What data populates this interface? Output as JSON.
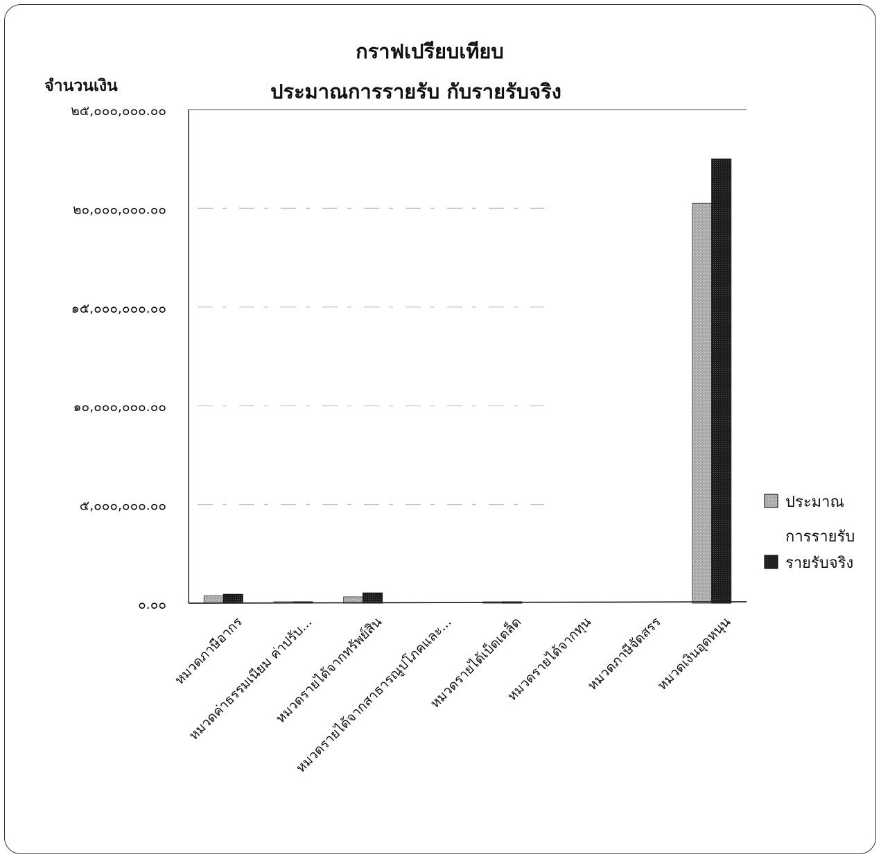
{
  "chart_data": {
    "type": "bar",
    "title": [
      "กราฟเปรียบเทียบ",
      "ประมาณการรายรับ กับรายรับจริง"
    ],
    "ylabel": "จำนวนเงิน",
    "xlabel": "",
    "ylim": [
      0,
      25000000
    ],
    "yticks": [
      0,
      5000000,
      10000000,
      15000000,
      20000000,
      25000000
    ],
    "ytick_labels": [
      "๐.๐๐",
      "๕,๐๐๐,๐๐๐.๐๐",
      "๑๐,๐๐๐,๐๐๐.๐๐",
      "๑๕,๐๐๐,๐๐๐.๐๐",
      "๒๐,๐๐๐,๐๐๐.๐๐",
      "๒๕,๐๐๐,๐๐๐.๐๐"
    ],
    "categories": [
      "หมวดภาษีอากร",
      "หมวดค่าธรรมเนียม ค่าปรับ...",
      "หมวดรายได้จากทรัพย์สิน",
      "หมวดรายได้จากสาธารณูปโภคและ...",
      "หมวดรายได้เบ็ดเตล็ด",
      "หมวดรายได้จากทุน",
      "หมวดภาษีจัดสรร",
      "หมวดเงินอุดหนุน"
    ],
    "series": [
      {
        "name": "ประมาณการรายรับ",
        "color": "#b0b0b0",
        "values": [
          380000,
          20000,
          320000,
          0,
          15000,
          0,
          0,
          20250000
        ]
      },
      {
        "name": "รายรับจริง",
        "color": "#2b2b2b",
        "values": [
          450000,
          25000,
          520000,
          0,
          30000,
          0,
          0,
          22500000
        ]
      }
    ],
    "legend": "right",
    "grid": true
  }
}
